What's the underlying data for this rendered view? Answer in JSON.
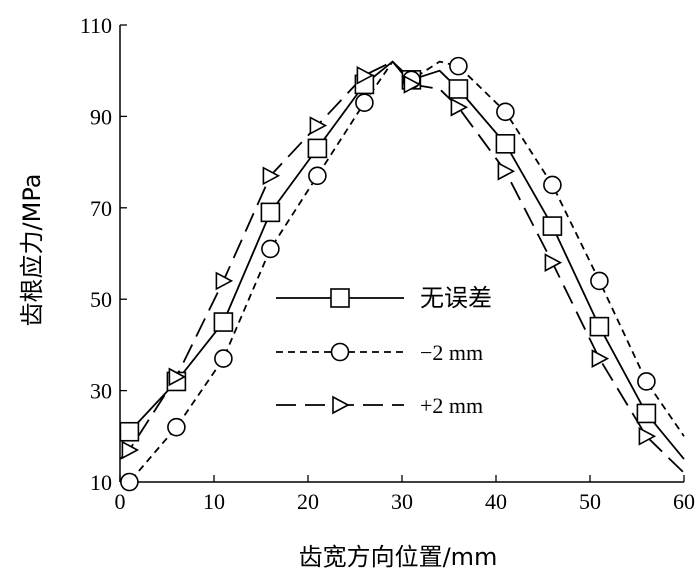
{
  "chart_data": {
    "type": "line",
    "xlabel": "齿宽方向位置/mm",
    "ylabel": "齿根应力/MPa",
    "xlim": [
      0,
      60
    ],
    "ylim": [
      10,
      110
    ],
    "xticks": [
      0,
      10,
      20,
      30,
      40,
      50,
      60
    ],
    "yticks": [
      10,
      30,
      50,
      70,
      90,
      110
    ],
    "grid": false,
    "legend_position": "center",
    "series": [
      {
        "name": "无误差",
        "marker": "square",
        "line_style": "solid",
        "x": [
          0,
          1,
          6,
          11,
          16,
          21,
          26,
          29,
          31,
          34,
          36,
          41,
          46,
          51,
          56,
          60
        ],
        "y": [
          20,
          21,
          32,
          45,
          69,
          83,
          97,
          102,
          98,
          100,
          96,
          84,
          66,
          44,
          25,
          15
        ],
        "marker_x": [
          1,
          6,
          11,
          16,
          21,
          26,
          31,
          36,
          41,
          46,
          51,
          56
        ],
        "marker_y": [
          21,
          32,
          45,
          69,
          83,
          97,
          98,
          96,
          84,
          66,
          44,
          25
        ]
      },
      {
        "name": "−2 mm",
        "marker": "circle",
        "line_style": "dashed",
        "x": [
          0,
          1,
          6,
          11,
          16,
          21,
          26,
          29,
          31,
          34,
          36,
          41,
          46,
          51,
          56,
          60
        ],
        "y": [
          10,
          10,
          22,
          37,
          61,
          77,
          93,
          102,
          98,
          102,
          101,
          91,
          75,
          54,
          32,
          20
        ],
        "marker_x": [
          1,
          6,
          11,
          16,
          21,
          26,
          31,
          36,
          41,
          46,
          51,
          56
        ],
        "marker_y": [
          10,
          22,
          37,
          61,
          77,
          93,
          98,
          101,
          91,
          75,
          54,
          32
        ]
      },
      {
        "name": "+2 mm",
        "marker": "triangle-right",
        "line_style": "long-dash",
        "x": [
          0,
          1,
          6,
          11,
          16,
          21,
          26,
          29,
          31,
          34,
          36,
          41,
          46,
          51,
          56,
          60
        ],
        "y": [
          15,
          17,
          33,
          54,
          77,
          88,
          99,
          102,
          97,
          96,
          92,
          78,
          58,
          37,
          20,
          12
        ],
        "marker_x": [
          1,
          6,
          11,
          16,
          21,
          26,
          31,
          36,
          41,
          46,
          51,
          56
        ],
        "marker_y": [
          17,
          33,
          54,
          77,
          88,
          99,
          97,
          92,
          78,
          58,
          37,
          20
        ]
      }
    ]
  }
}
